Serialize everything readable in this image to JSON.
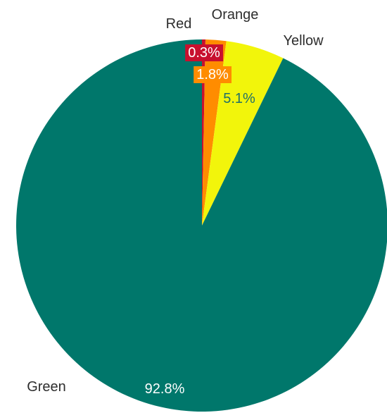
{
  "chart_data": {
    "type": "pie",
    "title": "",
    "start": "top",
    "direction": "clockwise",
    "slices": [
      {
        "label": "Red",
        "value": 0.3,
        "value_label": "0.3%",
        "color": "#c8102e",
        "label_text_color": "#ffffff"
      },
      {
        "label": "Orange",
        "value": 1.8,
        "value_label": "1.8%",
        "color": "#ff8c00",
        "label_text_color": "#ffffff"
      },
      {
        "label": "Yellow",
        "value": 5.1,
        "value_label": "5.1%",
        "color": "#f2f50b",
        "label_text_color": "#1f6f6a"
      },
      {
        "label": "Green",
        "value": 92.8,
        "value_label": "92.8%",
        "color": "#00776b",
        "label_text_color": "#ffffff"
      }
    ]
  }
}
